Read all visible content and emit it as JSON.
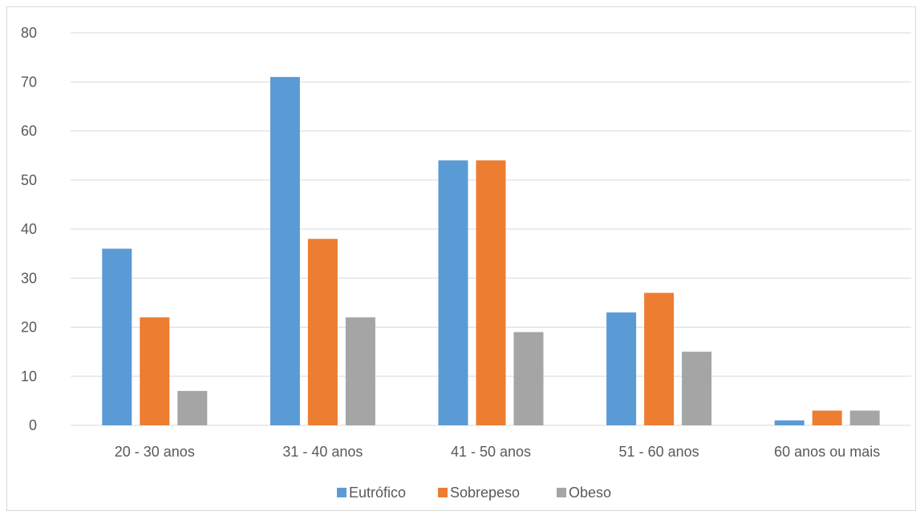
{
  "chart_data": {
    "type": "bar",
    "title": "",
    "xlabel": "",
    "ylabel": "",
    "categories": [
      "20 - 30 anos",
      "31 - 40 anos",
      "41 - 50 anos",
      "51 - 60 anos",
      "60 anos ou mais"
    ],
    "series": [
      {
        "name": "Eutrófico",
        "color": "#5b9bd5",
        "values": [
          36,
          71,
          54,
          23,
          1
        ]
      },
      {
        "name": "Sobrepeso",
        "color": "#ed7d31",
        "values": [
          22,
          38,
          54,
          27,
          3
        ]
      },
      {
        "name": "Obeso",
        "color": "#a5a5a5",
        "values": [
          7,
          22,
          19,
          15,
          3
        ]
      }
    ],
    "ylim": [
      0,
      80
    ],
    "yticks": [
      "0",
      "10",
      "20",
      "30",
      "40",
      "50",
      "60",
      "70",
      "80"
    ],
    "grid": true,
    "legend_position": "bottom",
    "gridline_color": "#d9d9d9"
  }
}
